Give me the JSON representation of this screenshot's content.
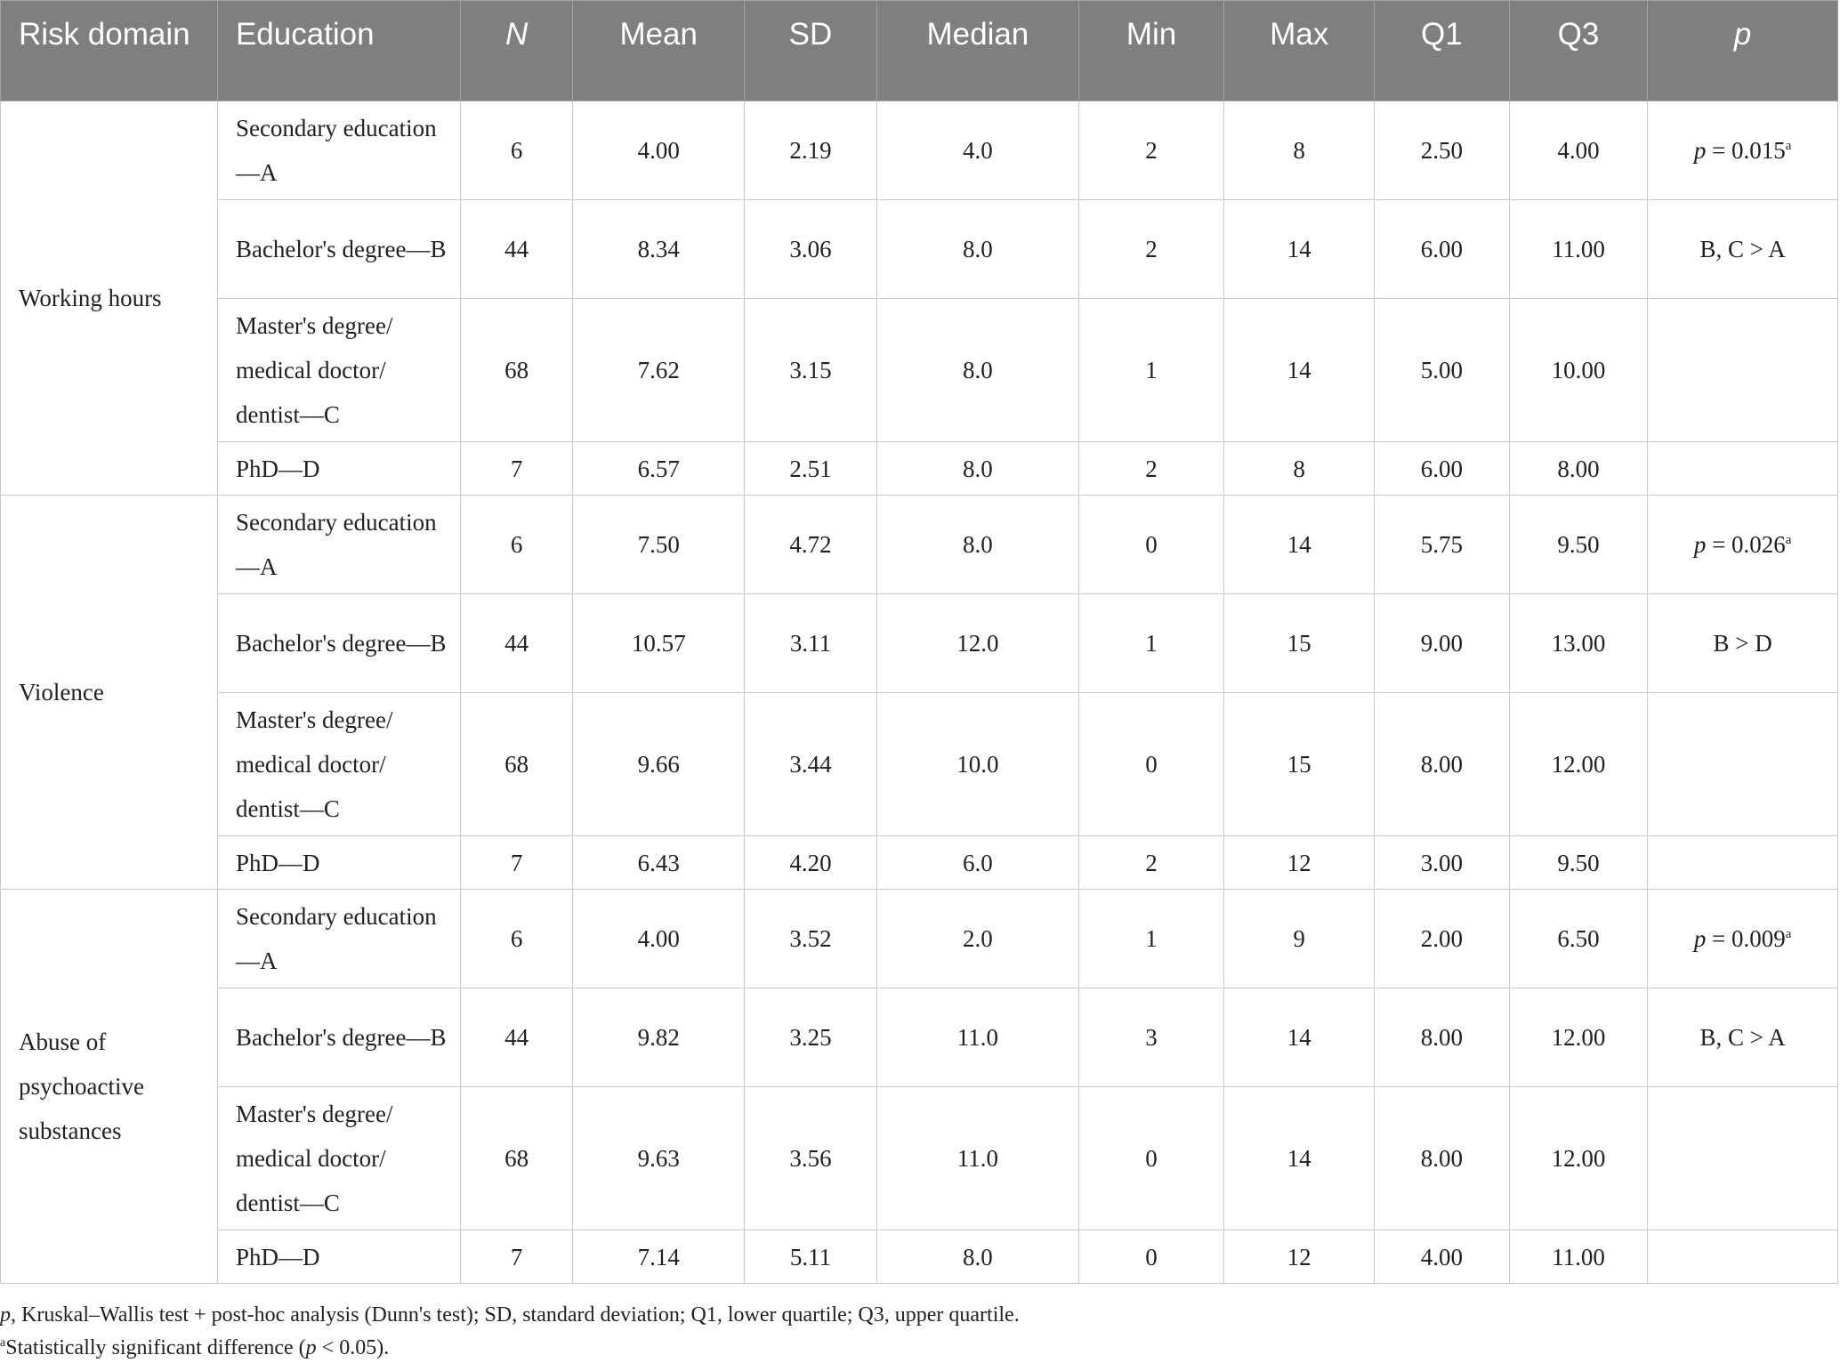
{
  "header": {
    "risk_domain": "Risk domain",
    "education": "Education",
    "n": "N",
    "mean": "Mean",
    "sd": "SD",
    "median": "Median",
    "min": "Min",
    "max": "Max",
    "q1": "Q1",
    "q3": "Q3",
    "p": "p"
  },
  "groups": [
    {
      "domain": "Working hours",
      "p_value_label": "p",
      "p_value": " = 0.015",
      "p_sup": "a",
      "posthoc": "B, C > A",
      "rows": [
        {
          "education": "Secondary education—A",
          "n": "6",
          "mean": "4.00",
          "sd": "2.19",
          "median": "4.0",
          "min": "2",
          "max": "8",
          "q1": "2.50",
          "q3": "4.00"
        },
        {
          "education": "Bachelor's degree—B",
          "n": "44",
          "mean": "8.34",
          "sd": "3.06",
          "median": "8.0",
          "min": "2",
          "max": "14",
          "q1": "6.00",
          "q3": "11.00"
        },
        {
          "education": "Master's degree/ medical doctor/ dentist—C",
          "n": "68",
          "mean": "7.62",
          "sd": "3.15",
          "median": "8.0",
          "min": "1",
          "max": "14",
          "q1": "5.00",
          "q3": "10.00"
        },
        {
          "education": "PhD—D",
          "n": "7",
          "mean": "6.57",
          "sd": "2.51",
          "median": "8.0",
          "min": "2",
          "max": "8",
          "q1": "6.00",
          "q3": "8.00"
        }
      ]
    },
    {
      "domain": "Violence",
      "p_value_label": "p",
      "p_value": " = 0.026",
      "p_sup": "a",
      "posthoc": "B > D",
      "rows": [
        {
          "education": "Secondary education—A",
          "n": "6",
          "mean": "7.50",
          "sd": "4.72",
          "median": "8.0",
          "min": "0",
          "max": "14",
          "q1": "5.75",
          "q3": "9.50"
        },
        {
          "education": "Bachelor's degree—B",
          "n": "44",
          "mean": "10.57",
          "sd": "3.11",
          "median": "12.0",
          "min": "1",
          "max": "15",
          "q1": "9.00",
          "q3": "13.00"
        },
        {
          "education": "Master's degree/ medical doctor/ dentist—C",
          "n": "68",
          "mean": "9.66",
          "sd": "3.44",
          "median": "10.0",
          "min": "0",
          "max": "15",
          "q1": "8.00",
          "q3": "12.00"
        },
        {
          "education": "PhD—D",
          "n": "7",
          "mean": "6.43",
          "sd": "4.20",
          "median": "6.0",
          "min": "2",
          "max": "12",
          "q1": "3.00",
          "q3": "9.50"
        }
      ]
    },
    {
      "domain": "Abuse of psychoactive substances",
      "p_value_label": "p",
      "p_value": " = 0.009",
      "p_sup": "a",
      "posthoc": "B, C > A",
      "rows": [
        {
          "education": "Secondary education—A",
          "n": "6",
          "mean": "4.00",
          "sd": "3.52",
          "median": "2.0",
          "min": "1",
          "max": "9",
          "q1": "2.00",
          "q3": "6.50"
        },
        {
          "education": "Bachelor's degree—B",
          "n": "44",
          "mean": "9.82",
          "sd": "3.25",
          "median": "11.0",
          "min": "3",
          "max": "14",
          "q1": "8.00",
          "q3": "12.00"
        },
        {
          "education": "Master's degree/ medical doctor/ dentist—C",
          "n": "68",
          "mean": "9.63",
          "sd": "3.56",
          "median": "11.0",
          "min": "0",
          "max": "14",
          "q1": "8.00",
          "q3": "12.00"
        },
        {
          "education": "PhD—D",
          "n": "7",
          "mean": "7.14",
          "sd": "5.11",
          "median": "8.0",
          "min": "0",
          "max": "12",
          "q1": "4.00",
          "q3": "11.00"
        }
      ]
    }
  ],
  "footnotes": {
    "line1_italic": "p",
    "line1_rest": ", Kruskal–Wallis test + post-hoc analysis (Dunn's test); SD, standard deviation; Q1, lower quartile; Q3, upper quartile.",
    "line2_sup": "a",
    "line2_text_a": "Statistically significant difference (",
    "line2_italic": "p",
    "line2_text_b": " < 0.05)."
  }
}
